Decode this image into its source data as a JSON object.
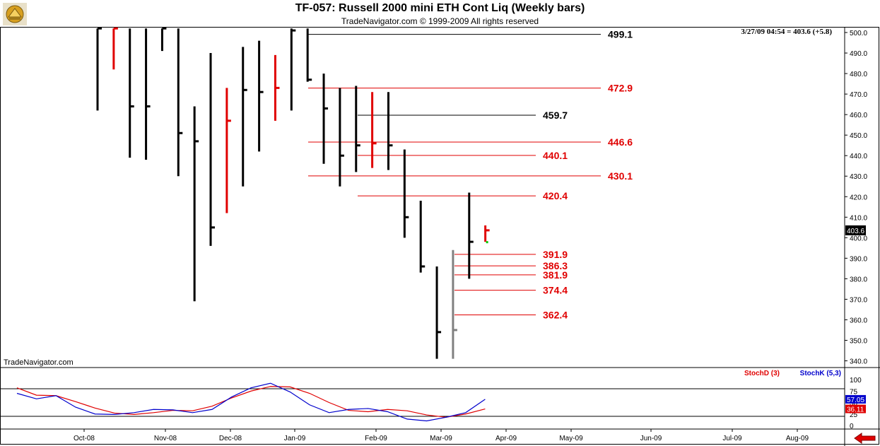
{
  "header": {
    "title": "TF-057:  Russell 2000 mini ETH Cont Liq  (Weekly bars)",
    "copyright": "TradeNavigator.com © 1999-2009 All rights reserved"
  },
  "watermark": "TradeNavigator.com",
  "timestamp": "3/27/09 04:54 = 403.6 (+5.8)",
  "colors": {
    "up": "#000000",
    "down": "#e00000",
    "grid": "#000000",
    "stochD": "#e00000",
    "stochK": "#0000cc",
    "accent_green": "#00cc00"
  },
  "chart_data": [
    {
      "type": "ohlc",
      "ylim": [
        337,
        502
      ],
      "y_ticks": [
        340,
        350,
        360,
        370,
        380,
        390,
        400,
        410,
        420,
        430,
        440,
        450,
        460,
        470,
        480,
        490,
        500
      ],
      "y_tick_labels": [
        "340.0",
        "350.0",
        "360.0",
        "370.0",
        "380.0",
        "390.0",
        "400.0",
        "410.0",
        "420.0",
        "430.0",
        "440.0",
        "450.0",
        "460.0",
        "470.0",
        "480.0",
        "490.0",
        "500.0"
      ],
      "x_months": [
        "Oct-08",
        "Nov-08",
        "Dec-08",
        "Jan-09",
        "Feb-09",
        "Mar-09",
        "Apr-09",
        "May-09",
        "Jun-09",
        "Jul-09",
        "Aug-09"
      ],
      "last_price_label": "403.6",
      "bars": [
        {
          "date": "2008-09-19",
          "high": 502,
          "low": 462,
          "close": 502,
          "color": "black"
        },
        {
          "date": "2008-09-26",
          "high": 502,
          "low": 482,
          "close": 502,
          "color": "red"
        },
        {
          "date": "2008-10-03",
          "high": 502,
          "low": 439,
          "close": 464,
          "color": "black"
        },
        {
          "date": "2008-10-10",
          "high": 502,
          "low": 438,
          "close": 464,
          "color": "black"
        },
        {
          "date": "2008-10-17",
          "high": 502,
          "low": 491,
          "close": 502,
          "color": "black"
        },
        {
          "date": "2008-10-24",
          "high": 502,
          "low": 430,
          "close": 451,
          "color": "black"
        },
        {
          "date": "2008-10-31",
          "high": 464,
          "low": 369,
          "close": 447,
          "color": "black"
        },
        {
          "date": "2008-11-07",
          "high": 490,
          "low": 396,
          "close": 405,
          "color": "black"
        },
        {
          "date": "2008-11-14",
          "high": 473,
          "low": 412,
          "close": 457,
          "color": "red"
        },
        {
          "date": "2008-11-21",
          "high": 493,
          "low": 425,
          "close": 472,
          "color": "black"
        },
        {
          "date": "2008-11-28",
          "high": 496,
          "low": 442,
          "close": 471,
          "color": "black"
        },
        {
          "date": "2008-12-05",
          "high": 489,
          "low": 457,
          "close": 473,
          "color": "red"
        },
        {
          "date": "2008-12-12",
          "high": 502,
          "low": 462,
          "close": 501,
          "color": "black"
        },
        {
          "date": "2008-12-19",
          "high": 502,
          "low": 476,
          "close": 477,
          "color": "black"
        },
        {
          "date": "2008-12-26",
          "high": 480,
          "low": 436,
          "close": 463,
          "color": "black"
        },
        {
          "date": "2009-01-02",
          "high": 473,
          "low": 425,
          "close": 440,
          "color": "black"
        },
        {
          "date": "2009-01-09",
          "high": 474,
          "low": 432,
          "close": 445,
          "color": "black"
        },
        {
          "date": "2009-01-16",
          "high": 471,
          "low": 434,
          "close": 446,
          "color": "red"
        },
        {
          "date": "2009-01-23",
          "high": 471,
          "low": 433,
          "close": 445,
          "color": "black"
        },
        {
          "date": "2009-01-30",
          "high": 443,
          "low": 400,
          "close": 410,
          "color": "black"
        },
        {
          "date": "2009-02-06",
          "high": 418,
          "low": 383,
          "close": 386,
          "color": "black"
        },
        {
          "date": "2009-02-13",
          "high": 386,
          "low": 341,
          "close": 354,
          "color": "black"
        },
        {
          "date": "2009-02-20",
          "high": 394,
          "low": 341,
          "close": 355,
          "color": "gray"
        },
        {
          "date": "2009-02-27",
          "high": 422,
          "low": 380,
          "close": 398,
          "color": "black"
        },
        {
          "date": "2009-03-06",
          "high": 406,
          "low": 398,
          "close": 403.6,
          "color": "red"
        }
      ],
      "levels": [
        {
          "value": 499.1,
          "label": "499.1",
          "color": "black"
        },
        {
          "value": 472.9,
          "label": "472.9",
          "color": "red"
        },
        {
          "value": 459.7,
          "label": "459.7",
          "color": "black"
        },
        {
          "value": 446.6,
          "label": "446.6",
          "color": "red"
        },
        {
          "value": 440.1,
          "label": "440.1",
          "color": "red"
        },
        {
          "value": 430.1,
          "label": "430.1",
          "color": "red"
        },
        {
          "value": 420.4,
          "label": "420.4",
          "color": "red"
        },
        {
          "value": 391.9,
          "label": "391.9",
          "color": "red"
        },
        {
          "value": 386.3,
          "label": "386.3",
          "color": "red"
        },
        {
          "value": 381.9,
          "label": "381.9",
          "color": "red"
        },
        {
          "value": 374.4,
          "label": "374.4",
          "color": "red"
        },
        {
          "value": 362.4,
          "label": "362.4",
          "color": "red"
        }
      ]
    },
    {
      "type": "line",
      "ylim": [
        0,
        100
      ],
      "y_ticks": [
        0,
        25,
        50,
        75,
        100
      ],
      "y_tick_labels": [
        "0",
        "25",
        "50",
        "75",
        "100"
      ],
      "reference_lines": [
        20,
        80
      ],
      "series": [
        {
          "name": "StochD (3)",
          "color": "#e00000",
          "last_label": "36.11",
          "values": [
            82,
            66,
            65,
            52,
            38,
            27,
            24,
            28,
            33,
            32,
            42,
            60,
            75,
            85,
            84,
            70,
            50,
            33,
            30,
            35,
            32,
            23,
            18,
            25,
            36.11
          ]
        },
        {
          "name": "StochK (5,3)",
          "color": "#0000cc",
          "last_label": "57.05",
          "values": [
            70,
            58,
            65,
            40,
            25,
            24,
            28,
            35,
            34,
            28,
            35,
            62,
            82,
            92,
            73,
            45,
            28,
            35,
            37,
            30,
            14,
            10,
            18,
            28,
            57.05
          ]
        }
      ]
    }
  ]
}
